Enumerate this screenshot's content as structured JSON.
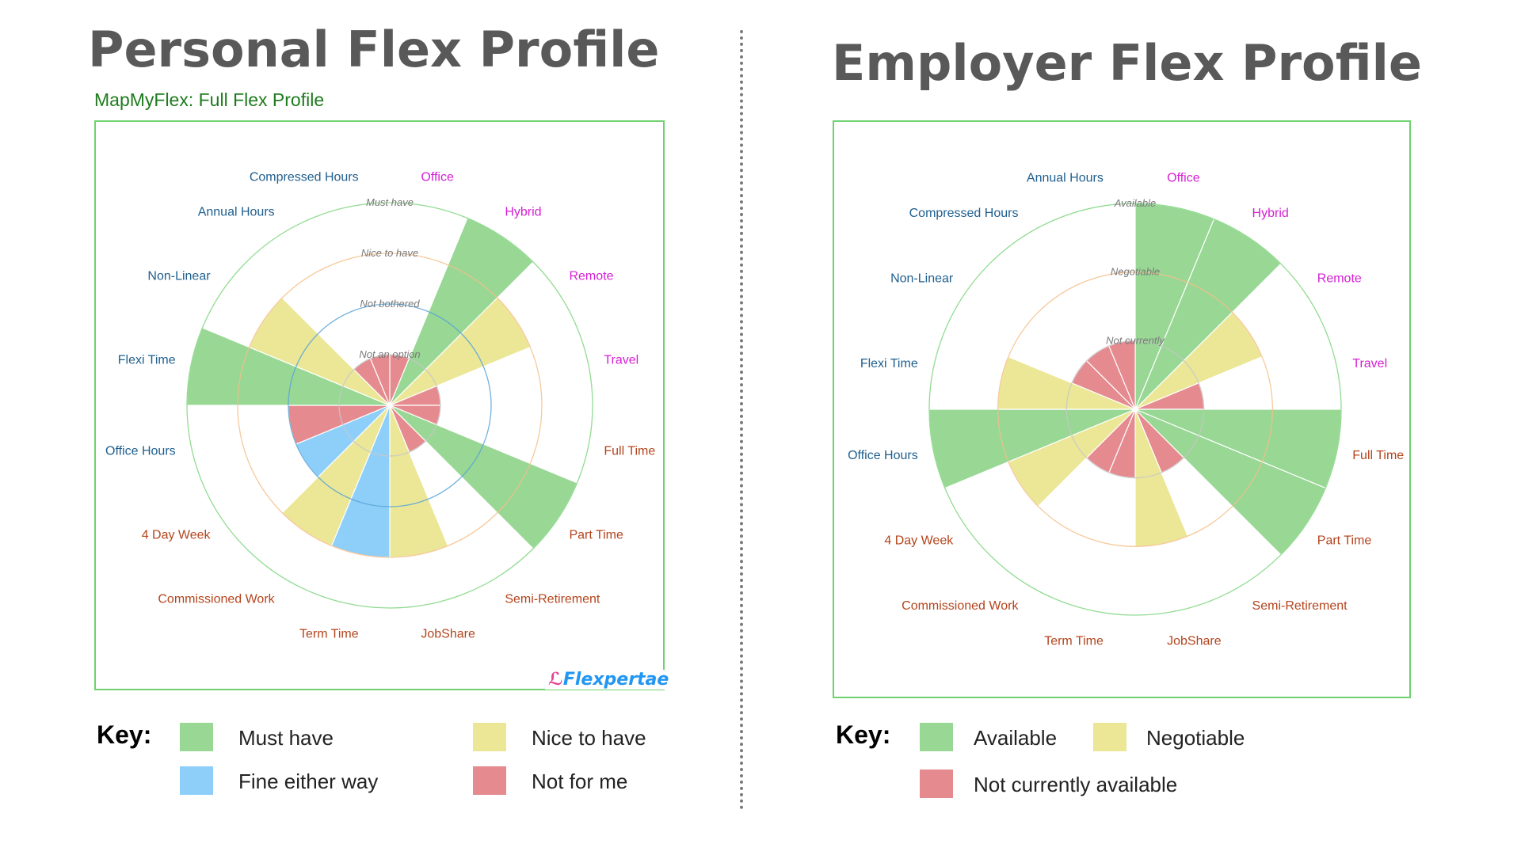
{
  "left": {
    "title": "Personal Flex Profile",
    "subtitle": "MapMyFlex: Full Flex Profile",
    "brand": "Flexpertae",
    "key_title": "Key:",
    "key": [
      {
        "label": "Must have",
        "color": "#98d794"
      },
      {
        "label": "Nice to have",
        "color": "#ebe796"
      },
      {
        "label": "Fine either way",
        "color": "#8ecffa"
      },
      {
        "label": "Not for me",
        "color": "#e58b8f"
      }
    ]
  },
  "right": {
    "title": "Employer Flex Profile",
    "key_title": "Key:",
    "key": [
      {
        "label": "Available",
        "color": "#98d794"
      },
      {
        "label": "Negotiable",
        "color": "#ebe796"
      },
      {
        "label": "Not currently available",
        "color": "#e58b8f"
      }
    ]
  },
  "chart_data": [
    {
      "type": "polar-area",
      "categories": [
        "Office",
        "Hybrid",
        "Remote",
        "Travel",
        "Full Time",
        "Part Time",
        "Semi-Retirement",
        "JobShare",
        "Term Time",
        "Commissioned Work",
        "4 Day Week",
        "Office Hours",
        "Flexi Time",
        "Non-Linear",
        "Annual Hours",
        "Compressed Hours"
      ],
      "category_colors": [
        "#d41fd4",
        "#d41fd4",
        "#d41fd4",
        "#d41fd4",
        "#b4441c",
        "#b4441c",
        "#b4441c",
        "#b4441c",
        "#b4441c",
        "#b4441c",
        "#b4441c",
        "#1f5f8f",
        "#1f5f8f",
        "#1f5f8f",
        "#1f5f8f",
        "#1f5f8f"
      ],
      "levels": [
        "Not an option",
        "Not bothered",
        "Nice to have",
        "Must have"
      ],
      "level_colors": [
        "#c8c8c8",
        "#5aa5d6",
        "#f5c08a",
        "#7fd67f"
      ],
      "values": [
        1,
        4,
        3,
        1,
        1,
        4,
        1,
        3,
        3,
        3,
        2,
        2,
        4,
        3,
        1,
        1
      ],
      "value_colors": [
        "#e58b8f",
        "#98d794",
        "#ebe796",
        "#e58b8f",
        "#e58b8f",
        "#98d794",
        "#e58b8f",
        "#ebe796",
        "#8ecffa",
        "#ebe796",
        "#8ecffa",
        "#e58b8f",
        "#98d794",
        "#ebe796",
        "#e58b8f",
        "#e58b8f"
      ]
    },
    {
      "type": "polar-area",
      "categories": [
        "Office",
        "Hybrid",
        "Remote",
        "Travel",
        "Full Time",
        "Part Time",
        "Semi-Retirement",
        "JobShare",
        "Term Time",
        "Commissioned Work",
        "4 Day Week",
        "Office Hours",
        "Flexi Time",
        "Non-Linear",
        "Compressed Hours",
        "Annual Hours"
      ],
      "category_colors": [
        "#d41fd4",
        "#d41fd4",
        "#d41fd4",
        "#d41fd4",
        "#b4441c",
        "#b4441c",
        "#b4441c",
        "#b4441c",
        "#b4441c",
        "#b4441c",
        "#b4441c",
        "#1f5f8f",
        "#1f5f8f",
        "#1f5f8f",
        "#1f5f8f",
        "#1f5f8f"
      ],
      "levels": [
        "Not currently",
        "Negotiable",
        "Available"
      ],
      "level_colors": [
        "#c8c8c8",
        "#f5c08a",
        "#7fd67f"
      ],
      "values": [
        3,
        3,
        2,
        1,
        3,
        3,
        1,
        2,
        1,
        1,
        2,
        3,
        2,
        1,
        1,
        1
      ],
      "value_colors": [
        "#98d794",
        "#98d794",
        "#ebe796",
        "#e58b8f",
        "#98d794",
        "#98d794",
        "#e58b8f",
        "#ebe796",
        "#e58b8f",
        "#e58b8f",
        "#ebe796",
        "#98d794",
        "#ebe796",
        "#e58b8f",
        "#e58b8f",
        "#e58b8f"
      ]
    }
  ]
}
